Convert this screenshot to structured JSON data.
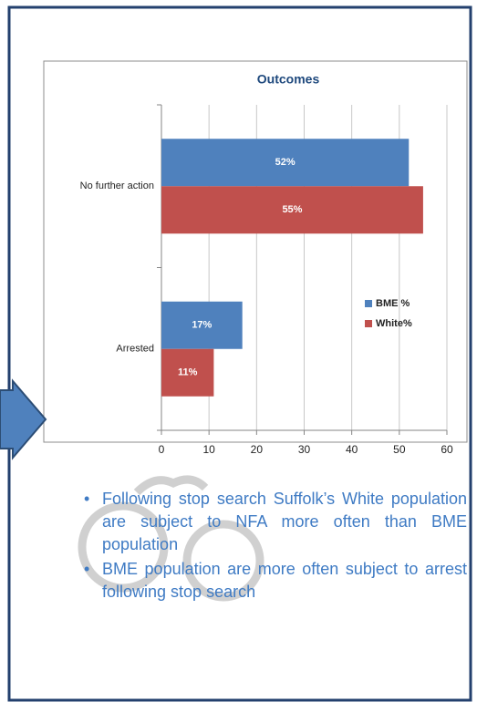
{
  "chart_data": {
    "type": "bar",
    "orientation": "horizontal",
    "title": "Outcomes",
    "categories": [
      "No further action",
      "Arrested"
    ],
    "series": [
      {
        "name": "BME %",
        "color": "#4f81bd",
        "values": [
          52,
          17
        ],
        "value_labels": [
          "52%",
          "17%"
        ]
      },
      {
        "name": "White%",
        "color": "#c0504d",
        "values": [
          55,
          11
        ],
        "value_labels": [
          "55%",
          "11%"
        ]
      }
    ],
    "xlim": [
      0,
      60
    ],
    "xticks": [
      0,
      10,
      20,
      30,
      40,
      50,
      60
    ],
    "grid": true,
    "legend": "right"
  },
  "bullets": [
    "Following stop search Suffolk’s White population are subject to NFA more often than BME population",
    "BME population are more often subject to arrest following stop search"
  ]
}
